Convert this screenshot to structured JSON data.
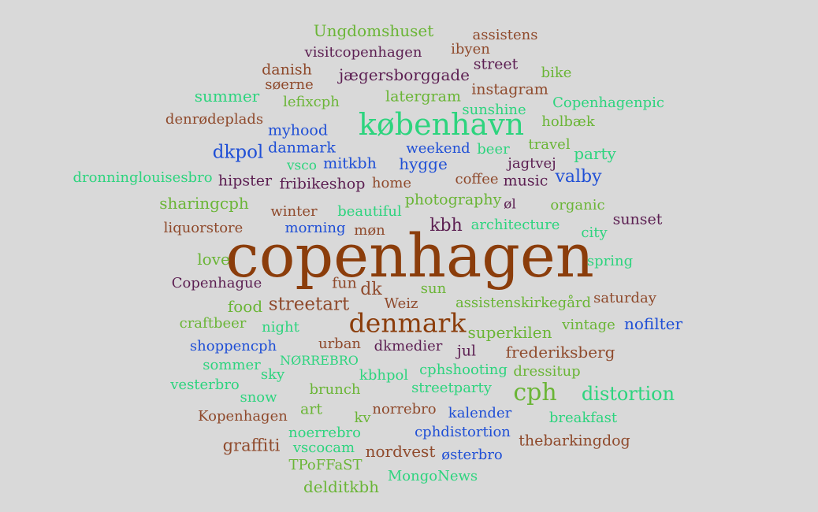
{
  "palette": {
    "brown": "#8b3d0b",
    "rust": "#8f4a2c",
    "plum": "#5c1f52",
    "blue": "#1f4fd6",
    "teal": "#2dd47e",
    "green": "#6ab536",
    "olive": "#5fa42c"
  },
  "words": [
    {
      "text": "copenhagen",
      "color": "brown"
    },
    {
      "text": "københavn",
      "color": "teal"
    },
    {
      "text": "denmark",
      "color": "brown"
    },
    {
      "text": "cph",
      "color": "green"
    },
    {
      "text": "Ungdomshuset",
      "color": "green"
    },
    {
      "text": "assistens",
      "color": "rust"
    },
    {
      "text": "visitcopenhagen",
      "color": "plum"
    },
    {
      "text": "ibyen",
      "color": "rust"
    },
    {
      "text": "danish",
      "color": "rust"
    },
    {
      "text": "street",
      "color": "plum"
    },
    {
      "text": "jægersborggade",
      "color": "plum"
    },
    {
      "text": "bike",
      "color": "green"
    },
    {
      "text": "søerne",
      "color": "rust"
    },
    {
      "text": "instagram",
      "color": "rust"
    },
    {
      "text": "summer",
      "color": "teal"
    },
    {
      "text": "latergram",
      "color": "green"
    },
    {
      "text": "lefixcph",
      "color": "green"
    },
    {
      "text": "Copenhagenpic",
      "color": "teal"
    },
    {
      "text": "sunshine",
      "color": "teal"
    },
    {
      "text": "denrødeplads",
      "color": "rust"
    },
    {
      "text": "holbæk",
      "color": "green"
    },
    {
      "text": "myhood",
      "color": "blue"
    },
    {
      "text": "dkpol",
      "color": "blue"
    },
    {
      "text": "danmark",
      "color": "blue"
    },
    {
      "text": "weekend",
      "color": "blue"
    },
    {
      "text": "beer",
      "color": "teal"
    },
    {
      "text": "travel",
      "color": "green"
    },
    {
      "text": "party",
      "color": "teal"
    },
    {
      "text": "vsco",
      "color": "teal"
    },
    {
      "text": "mitkbh",
      "color": "blue"
    },
    {
      "text": "hygge",
      "color": "blue"
    },
    {
      "text": "jagtvej",
      "color": "plum"
    },
    {
      "text": "dronninglouisesbro",
      "color": "teal"
    },
    {
      "text": "hipster",
      "color": "plum"
    },
    {
      "text": "fribikeshop",
      "color": "plum"
    },
    {
      "text": "home",
      "color": "rust"
    },
    {
      "text": "coffee",
      "color": "rust"
    },
    {
      "text": "music",
      "color": "plum"
    },
    {
      "text": "valby",
      "color": "blue"
    },
    {
      "text": "sharingcph",
      "color": "green"
    },
    {
      "text": "photography",
      "color": "green"
    },
    {
      "text": "øl",
      "color": "plum"
    },
    {
      "text": "organic",
      "color": "green"
    },
    {
      "text": "winter",
      "color": "rust"
    },
    {
      "text": "beautiful",
      "color": "teal"
    },
    {
      "text": "sunset",
      "color": "plum"
    },
    {
      "text": "liquorstore",
      "color": "rust"
    },
    {
      "text": "morning",
      "color": "blue"
    },
    {
      "text": "møn",
      "color": "rust"
    },
    {
      "text": "kbh",
      "color": "plum"
    },
    {
      "text": "architecture",
      "color": "teal"
    },
    {
      "text": "city",
      "color": "teal"
    },
    {
      "text": "love",
      "color": "green"
    },
    {
      "text": "spring",
      "color": "teal"
    },
    {
      "text": "Copenhague",
      "color": "plum"
    },
    {
      "text": "fun",
      "color": "rust"
    },
    {
      "text": "dk",
      "color": "rust"
    },
    {
      "text": "sun",
      "color": "green"
    },
    {
      "text": "food",
      "color": "green"
    },
    {
      "text": "streetart",
      "color": "rust"
    },
    {
      "text": "Weiz",
      "color": "rust"
    },
    {
      "text": "assistenskirkegård",
      "color": "green"
    },
    {
      "text": "saturday",
      "color": "rust"
    },
    {
      "text": "craftbeer",
      "color": "green"
    },
    {
      "text": "night",
      "color": "teal"
    },
    {
      "text": "superkilen",
      "color": "green"
    },
    {
      "text": "vintage",
      "color": "green"
    },
    {
      "text": "nofilter",
      "color": "blue"
    },
    {
      "text": "shoppencph",
      "color": "blue"
    },
    {
      "text": "urban",
      "color": "rust"
    },
    {
      "text": "dkmedier",
      "color": "plum"
    },
    {
      "text": "jul",
      "color": "plum"
    },
    {
      "text": "frederiksberg",
      "color": "rust"
    },
    {
      "text": "NØRREBRO",
      "color": "teal"
    },
    {
      "text": "sommer",
      "color": "teal"
    },
    {
      "text": "sky",
      "color": "teal"
    },
    {
      "text": "kbhpol",
      "color": "teal"
    },
    {
      "text": "cphshooting",
      "color": "teal"
    },
    {
      "text": "dressitup",
      "color": "green"
    },
    {
      "text": "vesterbro",
      "color": "teal"
    },
    {
      "text": "brunch",
      "color": "green"
    },
    {
      "text": "streetparty",
      "color": "teal"
    },
    {
      "text": "distortion",
      "color": "teal"
    },
    {
      "text": "snow",
      "color": "teal"
    },
    {
      "text": "art",
      "color": "green"
    },
    {
      "text": "norrebro",
      "color": "rust"
    },
    {
      "text": "Kopenhagen",
      "color": "rust"
    },
    {
      "text": "kv",
      "color": "green"
    },
    {
      "text": "kalender",
      "color": "blue"
    },
    {
      "text": "breakfast",
      "color": "teal"
    },
    {
      "text": "noerrebro",
      "color": "teal"
    },
    {
      "text": "cphdistortion",
      "color": "blue"
    },
    {
      "text": "graffiti",
      "color": "rust"
    },
    {
      "text": "vscocam",
      "color": "teal"
    },
    {
      "text": "thebarkingdog",
      "color": "rust"
    },
    {
      "text": "nordvest",
      "color": "rust"
    },
    {
      "text": "østerbro",
      "color": "blue"
    },
    {
      "text": "TPoFFaST",
      "color": "green"
    },
    {
      "text": "MongoNews",
      "color": "teal"
    },
    {
      "text": "delditkbh",
      "color": "green"
    }
  ]
}
